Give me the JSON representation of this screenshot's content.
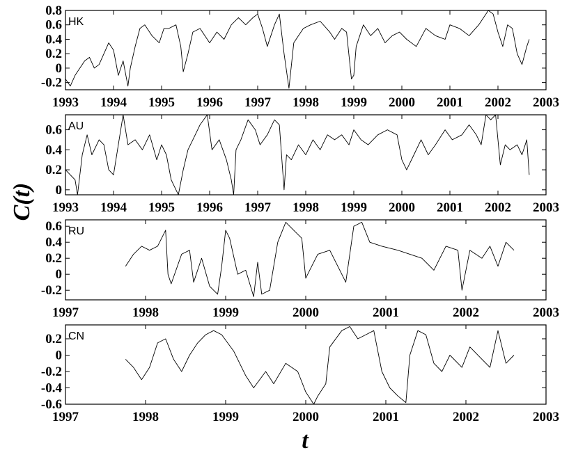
{
  "figure": {
    "ylabel": "C(t)",
    "xlabel": "t"
  },
  "chart_data": [
    {
      "type": "line",
      "panel_label": "HK",
      "xlim": [
        1993,
        2003
      ],
      "ylim": [
        -0.3,
        0.8
      ],
      "xticks": [
        "1993",
        "1994",
        "1995",
        "1996",
        "1997",
        "1998",
        "1999",
        "2000",
        "2001",
        "2002",
        "2003"
      ],
      "yticks": [
        "-0.2",
        "0",
        "0.2",
        "0.4",
        "0.6",
        "0.8"
      ],
      "ytick_values": [
        -0.2,
        0,
        0.2,
        0.4,
        0.6,
        0.8
      ],
      "x": [
        1993.0,
        1993.1,
        1993.2,
        1993.3,
        1993.4,
        1993.5,
        1993.6,
        1993.7,
        1993.8,
        1993.9,
        1994.0,
        1994.1,
        1994.2,
        1994.3,
        1994.35,
        1994.45,
        1994.55,
        1994.65,
        1994.8,
        1994.95,
        1995.05,
        1995.15,
        1995.3,
        1995.4,
        1995.45,
        1995.55,
        1995.65,
        1995.8,
        1995.9,
        1996.0,
        1996.15,
        1996.3,
        1996.45,
        1996.6,
        1996.75,
        1996.9,
        1997.0,
        1997.1,
        1997.2,
        1997.35,
        1997.45,
        1997.55,
        1997.65,
        1997.75,
        1997.85,
        1997.95,
        1998.1,
        1998.3,
        1998.5,
        1998.6,
        1998.75,
        1998.85,
        1998.95,
        1999.0,
        1999.05,
        1999.2,
        1999.35,
        1999.5,
        1999.65,
        1999.8,
        1999.95,
        2000.1,
        2000.3,
        2000.5,
        2000.7,
        2000.9,
        2001.0,
        2001.2,
        2001.4,
        2001.6,
        2001.7,
        2001.8,
        2001.9,
        2002.0,
        2002.1,
        2002.2,
        2002.3,
        2002.4,
        2002.5,
        2002.6,
        2002.65
      ],
      "y": [
        -0.15,
        -0.25,
        -0.1,
        0.0,
        0.1,
        0.15,
        0.0,
        0.05,
        0.2,
        0.35,
        0.25,
        -0.1,
        0.1,
        -0.25,
        0.0,
        0.3,
        0.55,
        0.6,
        0.45,
        0.35,
        0.55,
        0.55,
        0.6,
        0.3,
        -0.05,
        0.2,
        0.5,
        0.55,
        0.45,
        0.35,
        0.5,
        0.4,
        0.6,
        0.7,
        0.6,
        0.7,
        0.75,
        0.55,
        0.3,
        0.6,
        0.75,
        0.2,
        -0.28,
        0.35,
        0.45,
        0.55,
        0.6,
        0.65,
        0.5,
        0.4,
        0.55,
        0.5,
        -0.15,
        -0.1,
        0.3,
        0.6,
        0.45,
        0.55,
        0.35,
        0.45,
        0.5,
        0.4,
        0.3,
        0.55,
        0.45,
        0.4,
        0.6,
        0.55,
        0.45,
        0.6,
        0.7,
        0.8,
        0.75,
        0.5,
        0.3,
        0.6,
        0.55,
        0.2,
        0.05,
        0.3,
        0.4
      ]
    },
    {
      "type": "line",
      "panel_label": "AU",
      "xlim": [
        1993,
        2003
      ],
      "ylim": [
        -0.05,
        0.75
      ],
      "xticks": [
        "1993",
        "1994",
        "1995",
        "1996",
        "1997",
        "1998",
        "1999",
        "2000",
        "2001",
        "2002",
        "2003"
      ],
      "yticks": [
        "0",
        "0.2",
        "0.4",
        "0.6"
      ],
      "ytick_values": [
        0,
        0.2,
        0.4,
        0.6
      ],
      "x": [
        1993.0,
        1993.1,
        1993.2,
        1993.25,
        1993.35,
        1993.45,
        1993.55,
        1993.7,
        1993.8,
        1993.9,
        1994.0,
        1994.1,
        1994.2,
        1994.3,
        1994.45,
        1994.6,
        1994.75,
        1994.9,
        1995.0,
        1995.1,
        1995.2,
        1995.35,
        1995.45,
        1995.55,
        1995.65,
        1995.8,
        1995.95,
        1996.05,
        1996.2,
        1996.35,
        1996.45,
        1996.5,
        1996.55,
        1996.65,
        1996.8,
        1996.95,
        1997.05,
        1997.2,
        1997.35,
        1997.45,
        1997.55,
        1997.6,
        1997.7,
        1997.85,
        1998.0,
        1998.15,
        1998.3,
        1998.45,
        1998.6,
        1998.75,
        1998.9,
        1999.0,
        1999.15,
        1999.3,
        1999.5,
        1999.7,
        1999.9,
        2000.0,
        2000.1,
        2000.25,
        2000.4,
        2000.55,
        2000.7,
        2000.9,
        2001.05,
        2001.25,
        2001.4,
        2001.55,
        2001.65,
        2001.75,
        2001.85,
        2001.95,
        2002.05,
        2002.15,
        2002.25,
        2002.4,
        2002.5,
        2002.6,
        2002.65
      ],
      "y": [
        0.2,
        0.15,
        0.1,
        -0.05,
        0.35,
        0.55,
        0.35,
        0.5,
        0.45,
        0.2,
        0.15,
        0.45,
        0.75,
        0.45,
        0.5,
        0.4,
        0.55,
        0.3,
        0.45,
        0.35,
        0.1,
        -0.05,
        0.2,
        0.4,
        0.5,
        0.65,
        0.75,
        0.4,
        0.5,
        0.3,
        0.1,
        -0.05,
        0.4,
        0.5,
        0.7,
        0.6,
        0.45,
        0.55,
        0.7,
        0.65,
        0.0,
        0.35,
        0.3,
        0.45,
        0.35,
        0.5,
        0.4,
        0.55,
        0.5,
        0.55,
        0.45,
        0.6,
        0.5,
        0.45,
        0.55,
        0.6,
        0.55,
        0.3,
        0.2,
        0.35,
        0.5,
        0.35,
        0.45,
        0.6,
        0.5,
        0.55,
        0.65,
        0.55,
        0.45,
        0.75,
        0.7,
        0.75,
        0.25,
        0.45,
        0.4,
        0.45,
        0.35,
        0.5,
        0.15
      ]
    },
    {
      "type": "line",
      "panel_label": "RU",
      "xlim": [
        1997,
        2003
      ],
      "ylim": [
        -0.32,
        0.68
      ],
      "xticks": [
        "1997",
        "1998",
        "1999",
        "2000",
        "2001",
        "2002",
        "2003"
      ],
      "yticks": [
        "-0.2",
        "0",
        "0.2",
        "0.4",
        "0.6"
      ],
      "ytick_values": [
        -0.2,
        0,
        0.2,
        0.4,
        0.6
      ],
      "x": [
        1997.75,
        1997.85,
        1997.95,
        1998.05,
        1998.15,
        1998.25,
        1998.28,
        1998.32,
        1998.45,
        1998.55,
        1998.6,
        1998.7,
        1998.8,
        1998.9,
        1998.95,
        1999.0,
        1999.05,
        1999.15,
        1999.25,
        1999.35,
        1999.4,
        1999.45,
        1999.55,
        1999.65,
        1999.75,
        1999.85,
        1999.95,
        2000.0,
        2000.05,
        2000.15,
        2000.3,
        2000.45,
        2000.5,
        2000.6,
        2000.7,
        2000.8,
        2000.95,
        2001.15,
        2001.3,
        2001.45,
        2001.6,
        2001.75,
        2001.9,
        2001.95,
        2002.05,
        2002.2,
        2002.3,
        2002.4,
        2002.5,
        2002.6
      ],
      "y": [
        0.1,
        0.25,
        0.35,
        0.3,
        0.35,
        0.55,
        0.0,
        -0.12,
        0.25,
        0.3,
        -0.1,
        0.2,
        -0.15,
        -0.25,
        0.1,
        0.55,
        0.45,
        0.0,
        0.05,
        -0.28,
        0.15,
        -0.25,
        -0.2,
        0.4,
        0.65,
        0.55,
        0.45,
        -0.05,
        0.05,
        0.25,
        0.3,
        0.0,
        -0.1,
        0.6,
        0.65,
        0.4,
        0.35,
        0.3,
        0.25,
        0.2,
        0.05,
        0.35,
        0.3,
        -0.2,
        0.3,
        0.2,
        0.35,
        0.1,
        0.4,
        0.3
      ]
    },
    {
      "type": "line",
      "panel_label": "CN",
      "xlim": [
        1997,
        2003
      ],
      "ylim": [
        -0.6,
        0.37
      ],
      "xticks": [
        "1997",
        "1998",
        "1999",
        "2000",
        "2001",
        "2002",
        "2003"
      ],
      "yticks": [
        "-0.6",
        "-0.4",
        "-0.2",
        "0",
        "0.2"
      ],
      "ytick_values": [
        -0.6,
        -0.4,
        -0.2,
        0,
        0.2
      ],
      "x": [
        1997.75,
        1997.85,
        1997.95,
        1998.05,
        1998.15,
        1998.25,
        1998.35,
        1998.45,
        1998.55,
        1998.65,
        1998.75,
        1998.85,
        1998.95,
        1999.1,
        1999.25,
        1999.35,
        1999.5,
        1999.6,
        1999.75,
        1999.9,
        2000.0,
        2000.1,
        2000.15,
        2000.25,
        2000.3,
        2000.45,
        2000.55,
        2000.65,
        2000.75,
        2000.85,
        2000.95,
        2001.05,
        2001.15,
        2001.25,
        2001.3,
        2001.4,
        2001.5,
        2001.6,
        2001.7,
        2001.8,
        2001.95,
        2002.05,
        2002.2,
        2002.3,
        2002.4,
        2002.5,
        2002.6
      ],
      "y": [
        -0.05,
        -0.15,
        -0.3,
        -0.15,
        0.15,
        0.2,
        -0.05,
        -0.2,
        0.0,
        0.15,
        0.25,
        0.3,
        0.25,
        0.05,
        -0.25,
        -0.4,
        -0.2,
        -0.35,
        -0.1,
        -0.2,
        -0.45,
        -0.6,
        -0.5,
        -0.35,
        0.1,
        0.3,
        0.35,
        0.2,
        0.25,
        0.3,
        -0.2,
        -0.4,
        -0.5,
        -0.58,
        0.0,
        0.3,
        0.25,
        -0.1,
        -0.2,
        0.0,
        -0.15,
        0.1,
        -0.05,
        -0.15,
        0.3,
        -0.1,
        0.0
      ]
    }
  ]
}
